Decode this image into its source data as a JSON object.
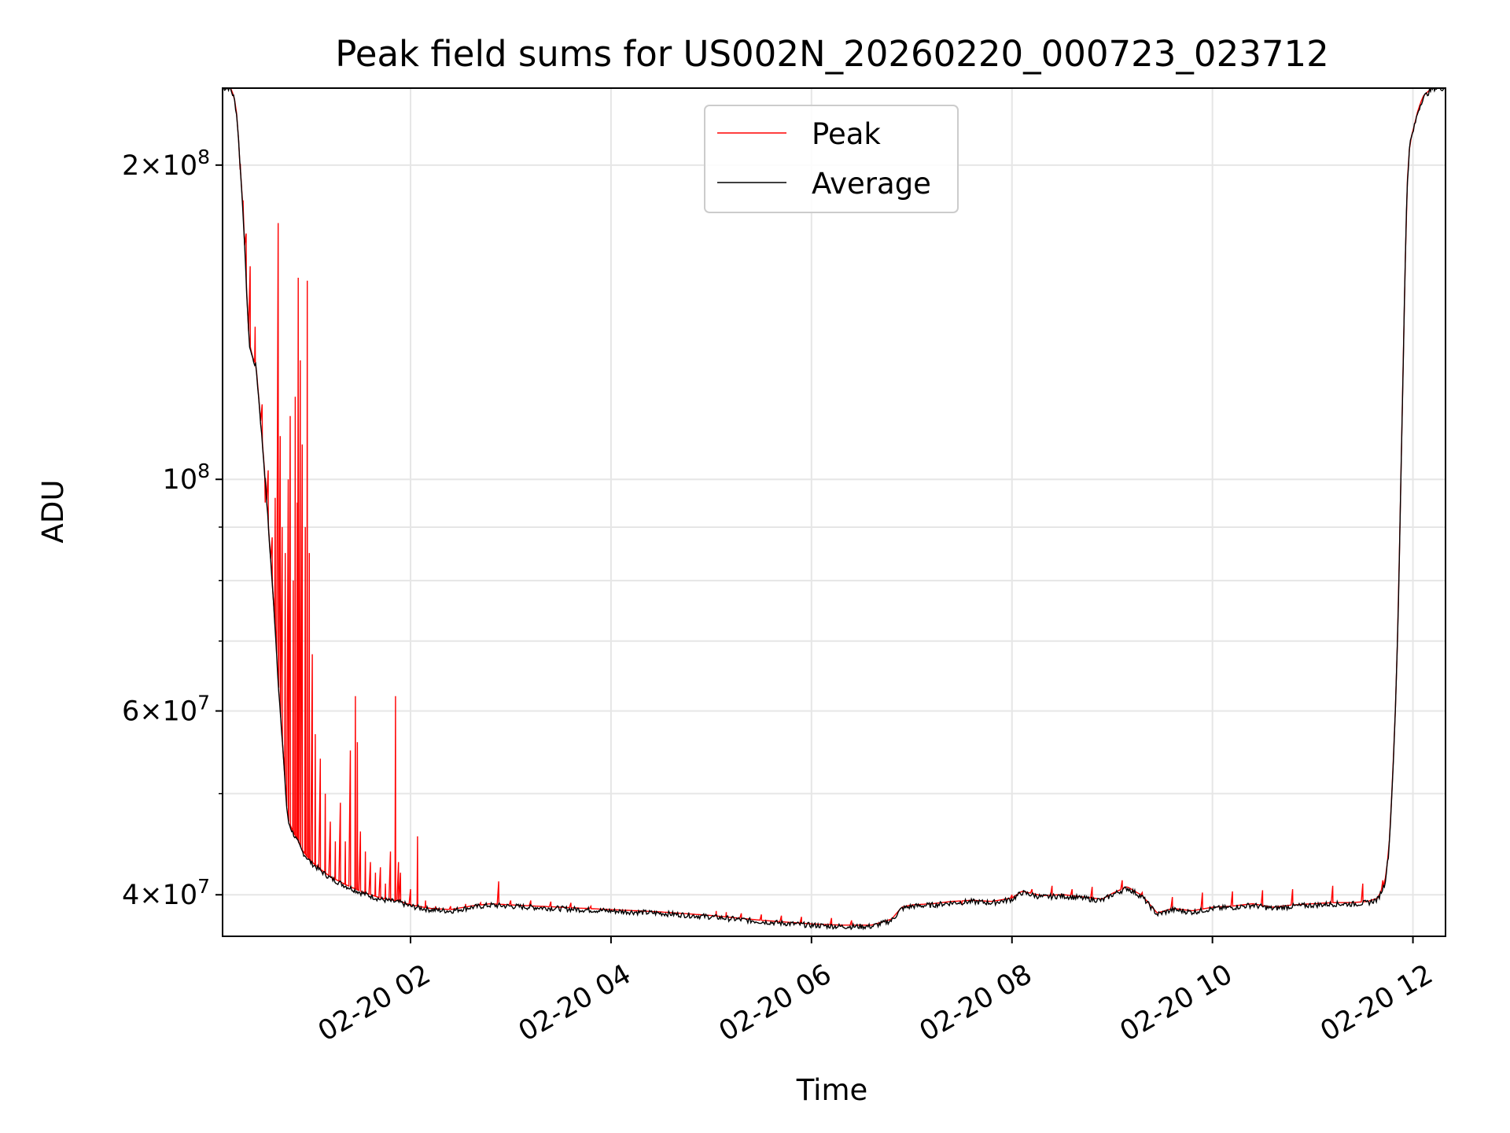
{
  "chart_data": {
    "type": "line",
    "title": "Peak field sums for US002N_20260220_000723_023712",
    "xlabel": "Time",
    "ylabel": "ADU",
    "yscale": "log",
    "xlim_hours": [
      0.125,
      12.325
    ],
    "ylim": [
      36500000,
      237000000
    ],
    "grid": true,
    "legend_position": "top-center",
    "x_ticks": [
      {
        "value": 2,
        "label": "02-20 02"
      },
      {
        "value": 4,
        "label": "02-20 04"
      },
      {
        "value": 6,
        "label": "02-20 06"
      },
      {
        "value": 8,
        "label": "02-20 08"
      },
      {
        "value": 10,
        "label": "02-20 10"
      },
      {
        "value": 12,
        "label": "02-20 12"
      }
    ],
    "y_major_ticks": [
      {
        "value": 40000000,
        "base": "4",
        "exp": "7"
      },
      {
        "value": 60000000,
        "base": "6",
        "exp": "7"
      },
      {
        "value": 100000000,
        "base": "",
        "exp": "8"
      },
      {
        "value": 200000000,
        "base": "2",
        "exp": "8"
      }
    ],
    "y_minor_ticks": [
      50000000,
      70000000,
      80000000,
      90000000
    ],
    "series": [
      {
        "name": "Peak",
        "color": "#ff0000",
        "base_ref": "Average",
        "spikes": [
          [
            0.3,
            198000000
          ],
          [
            0.33,
            185000000
          ],
          [
            0.36,
            172000000
          ],
          [
            0.4,
            160000000
          ],
          [
            0.45,
            140000000
          ],
          [
            0.52,
            118000000
          ],
          [
            0.55,
            95000000
          ],
          [
            0.58,
            102000000
          ],
          [
            0.62,
            88000000
          ],
          [
            0.65,
            96000000
          ],
          [
            0.68,
            176000000
          ],
          [
            0.7,
            110000000
          ],
          [
            0.72,
            90000000
          ],
          [
            0.75,
            85000000
          ],
          [
            0.78,
            100000000
          ],
          [
            0.8,
            115000000
          ],
          [
            0.83,
            80000000
          ],
          [
            0.85,
            120000000
          ],
          [
            0.87,
            95000000
          ],
          [
            0.88,
            156000000
          ],
          [
            0.9,
            130000000
          ],
          [
            0.92,
            108000000
          ],
          [
            0.95,
            90000000
          ],
          [
            0.97,
            155000000
          ],
          [
            0.99,
            85000000
          ],
          [
            1.02,
            68000000
          ],
          [
            1.05,
            57000000
          ],
          [
            1.1,
            54000000
          ],
          [
            1.15,
            50000000
          ],
          [
            1.2,
            47000000
          ],
          [
            1.25,
            45000000
          ],
          [
            1.3,
            49000000
          ],
          [
            1.35,
            45000000
          ],
          [
            1.4,
            55000000
          ],
          [
            1.45,
            62000000
          ],
          [
            1.47,
            56000000
          ],
          [
            1.5,
            46000000
          ],
          [
            1.55,
            44000000
          ],
          [
            1.6,
            43000000
          ],
          [
            1.65,
            42000000
          ],
          [
            1.7,
            42500000
          ],
          [
            1.75,
            41000000
          ],
          [
            1.8,
            44000000
          ],
          [
            1.85,
            62000000
          ],
          [
            1.88,
            43000000
          ],
          [
            1.9,
            42000000
          ],
          [
            2.0,
            40500000
          ],
          [
            2.07,
            45500000
          ],
          [
            2.15,
            39500000
          ],
          [
            2.25,
            39000000
          ],
          [
            2.4,
            39000000
          ],
          [
            2.55,
            39200000
          ],
          [
            2.7,
            39300000
          ],
          [
            2.88,
            41200000
          ],
          [
            3.0,
            39500000
          ],
          [
            3.2,
            39500000
          ],
          [
            3.4,
            39400000
          ],
          [
            3.6,
            39300000
          ],
          [
            3.8,
            39000000
          ],
          [
            4.0,
            38700000
          ],
          [
            5.05,
            38600000
          ],
          [
            5.15,
            38500000
          ],
          [
            5.3,
            38400000
          ],
          [
            5.5,
            38300000
          ],
          [
            5.7,
            38200000
          ],
          [
            5.9,
            38100000
          ],
          [
            6.2,
            38000000
          ],
          [
            6.4,
            37800000
          ],
          [
            7.0,
            39000000
          ],
          [
            7.5,
            39200000
          ],
          [
            8.0,
            40000000
          ],
          [
            8.2,
            40500000
          ],
          [
            8.4,
            40800000
          ],
          [
            8.6,
            40500000
          ],
          [
            8.8,
            40700000
          ],
          [
            9.1,
            41300000
          ],
          [
            9.3,
            40200000
          ],
          [
            9.6,
            39800000
          ],
          [
            9.9,
            40200000
          ],
          [
            10.2,
            40300000
          ],
          [
            10.5,
            40400000
          ],
          [
            10.8,
            40500000
          ],
          [
            11.2,
            40800000
          ],
          [
            11.5,
            41000000
          ],
          [
            11.7,
            41300000
          ]
        ]
      },
      {
        "name": "Average",
        "color": "#000000",
        "points": [
          [
            0.125,
            237000000
          ],
          [
            0.2,
            237000000
          ],
          [
            0.24,
            232000000
          ],
          [
            0.27,
            222000000
          ],
          [
            0.3,
            200000000
          ],
          [
            0.33,
            180000000
          ],
          [
            0.36,
            155000000
          ],
          [
            0.39,
            135000000
          ],
          [
            0.42,
            131000000
          ],
          [
            0.46,
            128000000
          ],
          [
            0.5,
            115000000
          ],
          [
            0.55,
            100000000
          ],
          [
            0.6,
            85000000
          ],
          [
            0.65,
            72000000
          ],
          [
            0.68,
            64000000
          ],
          [
            0.7,
            60000000
          ],
          [
            0.72,
            56000000
          ],
          [
            0.74,
            53000000
          ],
          [
            0.76,
            49000000
          ],
          [
            0.78,
            47000000
          ],
          [
            0.82,
            46000000
          ],
          [
            0.87,
            45000000
          ],
          [
            0.92,
            44000000
          ],
          [
            0.96,
            43500000
          ],
          [
            1.0,
            43000000
          ],
          [
            1.1,
            42200000
          ],
          [
            1.2,
            41500000
          ],
          [
            1.35,
            40800000
          ],
          [
            1.5,
            40200000
          ],
          [
            1.7,
            39600000
          ],
          [
            1.9,
            39300000
          ],
          [
            2.0,
            39000000
          ],
          [
            2.2,
            38700000
          ],
          [
            2.4,
            38600000
          ],
          [
            2.6,
            38900000
          ],
          [
            2.8,
            39100000
          ],
          [
            3.0,
            39000000
          ],
          [
            3.5,
            38800000
          ],
          [
            4.0,
            38600000
          ],
          [
            4.5,
            38400000
          ],
          [
            5.0,
            38100000
          ],
          [
            5.5,
            37700000
          ],
          [
            6.0,
            37400000
          ],
          [
            6.3,
            37300000
          ],
          [
            6.6,
            37300000
          ],
          [
            6.8,
            37800000
          ],
          [
            6.9,
            38800000
          ],
          [
            7.0,
            39000000
          ],
          [
            7.2,
            39100000
          ],
          [
            7.4,
            39300000
          ],
          [
            7.6,
            39400000
          ],
          [
            7.8,
            39300000
          ],
          [
            8.0,
            39600000
          ],
          [
            8.1,
            40200000
          ],
          [
            8.3,
            39800000
          ],
          [
            8.5,
            39900000
          ],
          [
            8.7,
            39700000
          ],
          [
            8.9,
            39500000
          ],
          [
            9.0,
            40000000
          ],
          [
            9.15,
            40600000
          ],
          [
            9.3,
            39800000
          ],
          [
            9.45,
            38300000
          ],
          [
            9.6,
            38700000
          ],
          [
            9.8,
            38500000
          ],
          [
            10.0,
            38800000
          ],
          [
            10.2,
            38900000
          ],
          [
            10.4,
            39100000
          ],
          [
            10.6,
            38800000
          ],
          [
            10.8,
            39000000
          ],
          [
            11.0,
            39100000
          ],
          [
            11.2,
            39200000
          ],
          [
            11.4,
            39200000
          ],
          [
            11.55,
            39300000
          ],
          [
            11.65,
            39600000
          ],
          [
            11.72,
            41000000
          ],
          [
            11.76,
            44000000
          ],
          [
            11.79,
            50000000
          ],
          [
            11.82,
            58000000
          ],
          [
            11.85,
            72000000
          ],
          [
            11.88,
            100000000
          ],
          [
            11.91,
            140000000
          ],
          [
            11.94,
            190000000
          ],
          [
            11.97,
            210000000
          ],
          [
            12.0,
            215000000
          ],
          [
            12.05,
            225000000
          ],
          [
            12.1,
            232000000
          ],
          [
            12.2,
            237000000
          ],
          [
            12.325,
            237000000
          ]
        ]
      }
    ]
  }
}
